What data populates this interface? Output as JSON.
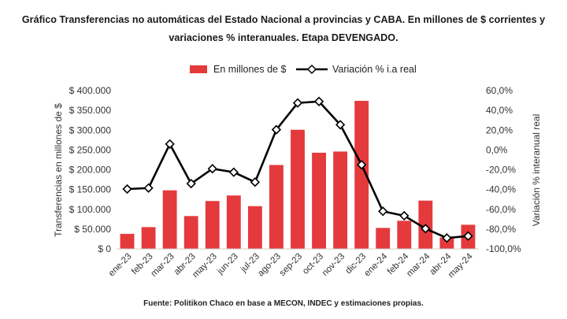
{
  "title": {
    "line1": "Gráfico   Transferencias no automáticas del Estado Nacional a provincias y CABA. En millones de $ corrientes y",
    "line2": "variaciones % interanuales. Etapa DEVENGADO."
  },
  "legend": {
    "bars_label": "En millones de $",
    "line_label": "Variación % i.a real"
  },
  "source": "Fuente: Politikon Chaco en base a MECON, INDEC y estimaciones propias.",
  "colors": {
    "bar": "#e43a3c",
    "line": "#000000",
    "marker_fill": "#ffffff",
    "axis": "#cccccc"
  },
  "chart_data": {
    "type": "bar",
    "categories": [
      "ene-23",
      "feb-23",
      "mar-23",
      "abr-23",
      "may-23",
      "jun-23",
      "jul-23",
      "ago-23",
      "sep-23",
      "oct-23",
      "nov-23",
      "dic-23",
      "ene-24",
      "feb-24",
      "mar-24",
      "abr-24",
      "may-24"
    ],
    "series": [
      {
        "name": "En millones de $",
        "type": "bar",
        "axis": "left",
        "values": [
          38000,
          55000,
          148000,
          83000,
          121000,
          135000,
          108000,
          212000,
          301000,
          243000,
          246000,
          374000,
          53000,
          71000,
          122000,
          29000,
          61000
        ]
      },
      {
        "name": "Variación % i.a real",
        "type": "line",
        "axis": "right",
        "values": [
          -39.5,
          -38.5,
          6.0,
          -34.0,
          -19.0,
          -22.5,
          -32.5,
          20.5,
          47.5,
          49.0,
          25.5,
          -15.0,
          -62.0,
          -66.5,
          -79.5,
          -89.0,
          -87.0
        ]
      }
    ],
    "ylabel": "Transferencias en millones de $",
    "y2label": "Variación % interanual real",
    "ylim": [
      0,
      400000
    ],
    "y2lim": [
      -100,
      60
    ],
    "yticks": [
      "$ 0",
      "$ 50.000",
      "$ 100.000",
      "$ 150.000",
      "$ 200.000",
      "$ 250.000",
      "$ 300.000",
      "$ 350.000",
      "$ 400.000"
    ],
    "y2ticks": [
      "-100,0%",
      "-80,0%",
      "-60,0%",
      "-40,0%",
      "-20,0%",
      "0,0%",
      "20,0%",
      "40,0%",
      "60,0%"
    ],
    "grid": false,
    "legend_position": "top"
  }
}
